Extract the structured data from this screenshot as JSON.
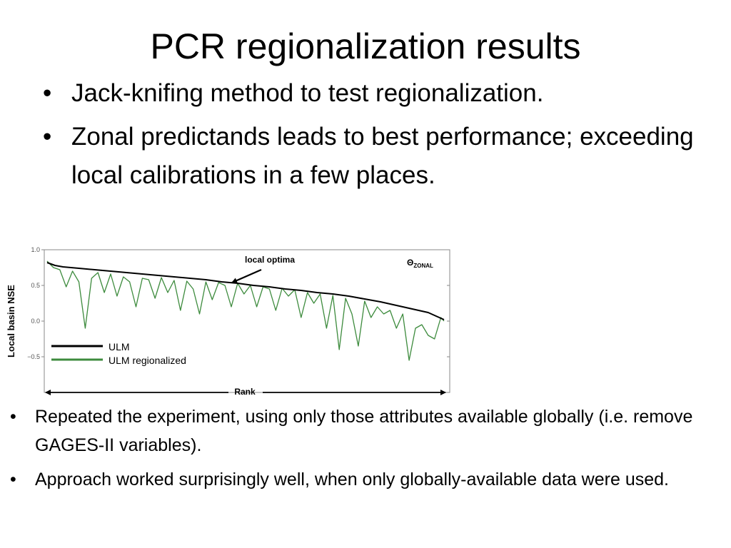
{
  "slide": {
    "title": "PCR regionalization results",
    "bullet_glyph": "•",
    "top_bullets": [
      "Jack-knifing method to test regionalization.",
      "Zonal predictands leads to best performance; exceeding local calibrations in a few places."
    ],
    "bottom_bullets": [
      "Repeated the experiment, using only those attributes available globally (i.e. remove GAGES-II variables).",
      "Approach worked surprisingly well, when only globally-available data were used."
    ]
  },
  "chart_data": {
    "type": "line",
    "title": "",
    "xlabel": "Rank",
    "ylabel": "Local basin NSE",
    "ylim": [
      -1.0,
      1.0
    ],
    "yticks": [
      1.0,
      0.5,
      0.0,
      -0.5
    ],
    "ytick_labels": [
      "1.0",
      "0.5",
      "0.0",
      "−0.5"
    ],
    "grid": false,
    "legend_position": "bottom-left",
    "annotations": {
      "arrow_label": "local optima",
      "corner_label": "Θ",
      "corner_label_sub": "ZONAL"
    },
    "series": [
      {
        "name": "ULM",
        "color": "#000000",
        "x": [
          0,
          5,
          10,
          20,
          30,
          40,
          50,
          60,
          70,
          80,
          90,
          100,
          110,
          120,
          130,
          140,
          150,
          160,
          170,
          180,
          190,
          200,
          210,
          220,
          230,
          240,
          245,
          250
        ],
        "y": [
          0.82,
          0.78,
          0.76,
          0.74,
          0.72,
          0.7,
          0.68,
          0.66,
          0.64,
          0.62,
          0.6,
          0.58,
          0.55,
          0.53,
          0.5,
          0.48,
          0.45,
          0.43,
          0.4,
          0.38,
          0.35,
          0.31,
          0.27,
          0.22,
          0.17,
          0.12,
          0.07,
          0.02
        ]
      },
      {
        "name": "ULM regionalized",
        "color": "#3d8b3d",
        "x": [
          0,
          4,
          8,
          12,
          16,
          20,
          24,
          28,
          32,
          36,
          40,
          44,
          48,
          52,
          56,
          60,
          64,
          68,
          72,
          76,
          80,
          84,
          88,
          92,
          96,
          100,
          104,
          108,
          112,
          116,
          120,
          124,
          128,
          132,
          136,
          140,
          144,
          148,
          152,
          156,
          160,
          164,
          168,
          172,
          176,
          180,
          184,
          188,
          192,
          196,
          200,
          204,
          208,
          212,
          216,
          220,
          224,
          228,
          232,
          236,
          240,
          244,
          248,
          250
        ],
        "y": [
          0.84,
          0.75,
          0.72,
          0.48,
          0.7,
          0.55,
          -0.1,
          0.6,
          0.68,
          0.4,
          0.66,
          0.35,
          0.62,
          0.55,
          0.2,
          0.6,
          0.58,
          0.32,
          0.61,
          0.4,
          0.57,
          0.15,
          0.56,
          0.45,
          0.1,
          0.55,
          0.3,
          0.54,
          0.5,
          0.2,
          0.53,
          0.38,
          0.5,
          0.2,
          0.48,
          0.45,
          0.15,
          0.46,
          0.35,
          0.44,
          0.05,
          0.4,
          0.25,
          0.38,
          -0.1,
          0.36,
          -0.4,
          0.32,
          0.1,
          -0.35,
          0.28,
          0.05,
          0.2,
          0.1,
          0.15,
          -0.1,
          0.1,
          -0.55,
          -0.1,
          -0.05,
          -0.2,
          -0.25,
          0.05,
          0.0
        ]
      }
    ]
  }
}
